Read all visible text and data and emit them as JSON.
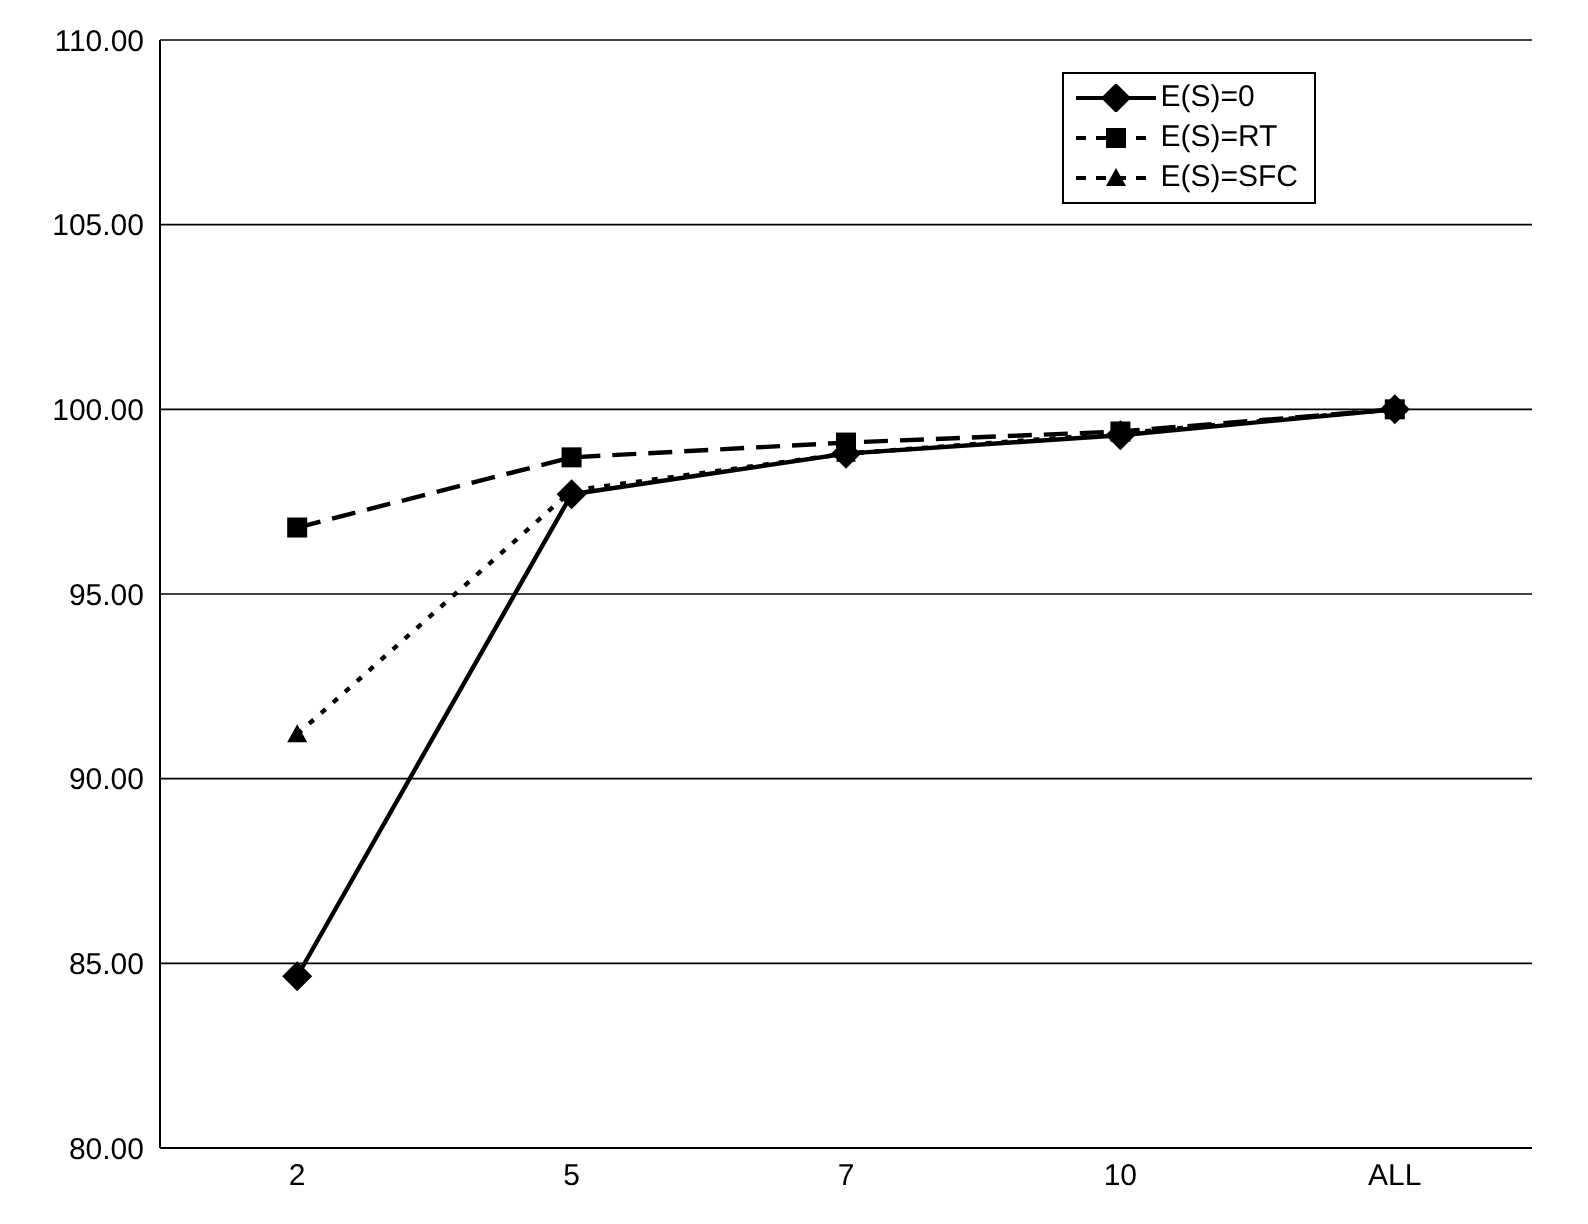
{
  "chart_data": {
    "type": "line",
    "categories": [
      "2",
      "5",
      "7",
      "10",
      "ALL"
    ],
    "series": [
      {
        "name": "E(S)=0",
        "color": "#000000",
        "marker": "diamond",
        "line_style": "solid",
        "values": [
          84.65,
          97.7,
          98.8,
          99.3,
          100
        ]
      },
      {
        "name": "E(S)=RT",
        "color": "#000000",
        "marker": "square",
        "line_style": "dashed",
        "values": [
          96.8,
          98.7,
          99.1,
          99.4,
          100
        ]
      },
      {
        "name": "E(S)=SFC",
        "color": "#000000",
        "marker": "triangle",
        "line_style": "dotted",
        "values": [
          91.2,
          97.8,
          98.8,
          99.35,
          100
        ]
      }
    ],
    "ylim": [
      80,
      110
    ],
    "yticks": [
      {
        "value": 80,
        "label": "80.00"
      },
      {
        "value": 85,
        "label": "85.00"
      },
      {
        "value": 90,
        "label": "90.00"
      },
      {
        "value": 95,
        "label": "95.00"
      },
      {
        "value": 100,
        "label": "100.00"
      },
      {
        "value": 105,
        "label": "105.00"
      },
      {
        "value": 110,
        "label": "110.00"
      }
    ],
    "grid": "y",
    "legend": "top right"
  }
}
